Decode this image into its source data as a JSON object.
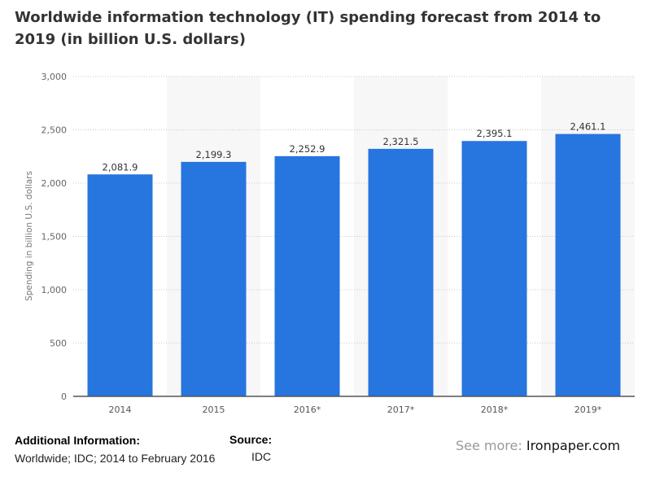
{
  "chart_data": {
    "type": "bar",
    "title": "Worldwide information technology (IT) spending forecast from 2014 to 2019 (in billion U.S. dollars)",
    "xlabel": "",
    "ylabel": "Spending in billion U.S. dollars",
    "categories": [
      "2014",
      "2015",
      "2016*",
      "2017*",
      "2018*",
      "2019*"
    ],
    "values": [
      2081.9,
      2199.3,
      2252.9,
      2321.5,
      2395.1,
      2461.1
    ],
    "value_labels": [
      "2,081.9",
      "2,199.3",
      "2,252.9",
      "2,321.5",
      "2,395.1",
      "2,461.1"
    ],
    "ylim": [
      0,
      3000
    ],
    "yticks": [
      0,
      500,
      1000,
      1500,
      2000,
      2500,
      3000
    ],
    "ytick_labels": [
      "0",
      "500",
      "1,000",
      "1,500",
      "2,000",
      "2,500",
      "3,000"
    ],
    "grid": true,
    "bar_color": "#2775de",
    "alt_column_color": "#f7f7f7"
  },
  "footer": {
    "additional_heading": "Additional Information:",
    "additional_text": "Worldwide; IDC; 2014 to February 2016",
    "source_heading": "Source:",
    "source_text": "IDC",
    "see_more_label": "See more:",
    "see_more_site": "Ironpaper.com"
  }
}
